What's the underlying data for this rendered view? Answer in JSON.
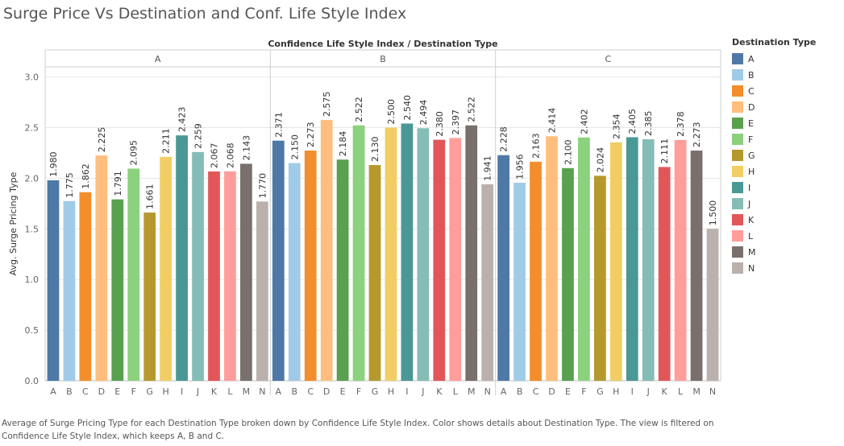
{
  "title": "Surge Price Vs Destination and Conf. Life Style Index",
  "caption": "Average of Surge Pricing Type for each Destination Type broken down by Confidence Life Style Index.  Color shows details about Destination Type. The view is filtered on Confidence Life Style Index, which keeps A, B and C.",
  "legend": {
    "title": "Destination Type",
    "items": [
      {
        "label": "A",
        "color": "#4e79a7"
      },
      {
        "label": "B",
        "color": "#a0cbe8"
      },
      {
        "label": "C",
        "color": "#f28e2b"
      },
      {
        "label": "D",
        "color": "#ffbe7d"
      },
      {
        "label": "E",
        "color": "#59a14f"
      },
      {
        "label": "F",
        "color": "#8cd17d"
      },
      {
        "label": "G",
        "color": "#b6992d"
      },
      {
        "label": "H",
        "color": "#f1ce63"
      },
      {
        "label": "I",
        "color": "#499894"
      },
      {
        "label": "J",
        "color": "#86bcb6"
      },
      {
        "label": "K",
        "color": "#e15759"
      },
      {
        "label": "L",
        "color": "#ff9d9a"
      },
      {
        "label": "M",
        "color": "#79706e"
      },
      {
        "label": "N",
        "color": "#bab0ac"
      }
    ]
  },
  "chart_data": {
    "type": "bar",
    "title": "Surge Price Vs Destination and Conf. Life Style Index",
    "header_label": "Confidence Life Style Index / Destination Type",
    "ylabel": "Avg. Surge Pricing Type",
    "ylim": [
      0,
      3.1
    ],
    "yticks": [
      "0.0",
      "0.5",
      "1.0",
      "1.5",
      "2.0",
      "2.5",
      "3.0"
    ],
    "categories": [
      "A",
      "B",
      "C",
      "D",
      "E",
      "F",
      "G",
      "H",
      "I",
      "J",
      "K",
      "L",
      "M",
      "N"
    ],
    "panels": [
      {
        "name": "A",
        "values": [
          1.98,
          1.775,
          1.862,
          2.225,
          1.791,
          2.095,
          1.661,
          2.211,
          2.423,
          2.259,
          2.067,
          2.068,
          2.143,
          1.77
        ],
        "labels": [
          "1.980",
          "1.775",
          "1.862",
          "2.225",
          "1.791",
          "2.095",
          "1.661",
          "2.211",
          "2.423",
          "2.259",
          "2.067",
          "2.068",
          "2.143",
          "1.770"
        ]
      },
      {
        "name": "B",
        "values": [
          2.371,
          2.15,
          2.273,
          2.575,
          2.184,
          2.522,
          2.13,
          2.5,
          2.54,
          2.494,
          2.38,
          2.397,
          2.522,
          1.941
        ],
        "labels": [
          "2.371",
          "2.150",
          "2.273",
          "2.575",
          "2.184",
          "2.522",
          "2.130",
          "2.500",
          "2.540",
          "2.494",
          "2.380",
          "2.397",
          "2.522",
          "1.941"
        ]
      },
      {
        "name": "C",
        "values": [
          2.228,
          1.956,
          2.163,
          2.414,
          2.1,
          2.402,
          2.024,
          2.354,
          2.405,
          2.385,
          2.111,
          2.378,
          2.273,
          1.5
        ],
        "labels": [
          "2.228",
          "1.956",
          "2.163",
          "2.414",
          "2.100",
          "2.402",
          "2.024",
          "2.354",
          "2.405",
          "2.385",
          "2.111",
          "2.378",
          "2.273",
          "1.500"
        ]
      }
    ],
    "grid": true,
    "legend_position": "right"
  }
}
